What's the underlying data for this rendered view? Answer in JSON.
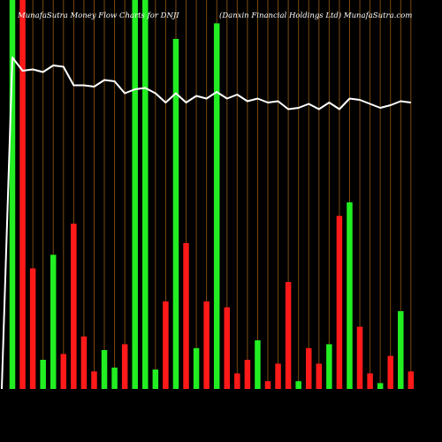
{
  "header": {
    "left_title": "MunafaSutra  Money Flow  Charts for DNJI",
    "right_title": "(Danxin  Financial Holdings Ltd) MunafaSutra.com"
  },
  "colors": {
    "background": "#000000",
    "gridline": "#7a4a10",
    "up_bar": "#22ee22",
    "down_bar": "#ff1a1a",
    "price_line": "#ffffff",
    "title_text": "#ffffff"
  },
  "chart_data": {
    "type": "bar",
    "grid": "vertical",
    "bar_ylim": [
      0,
      100
    ],
    "line_ylim": [
      0,
      100
    ],
    "bars": [
      {
        "direction": "up",
        "value": 100
      },
      {
        "direction": "down",
        "value": 100
      },
      {
        "direction": "down",
        "value": 31
      },
      {
        "direction": "up",
        "value": 7.5
      },
      {
        "direction": "up",
        "value": 34.5
      },
      {
        "direction": "down",
        "value": 9
      },
      {
        "direction": "down",
        "value": 42.5
      },
      {
        "direction": "down",
        "value": 13.5
      },
      {
        "direction": "down",
        "value": 4.5
      },
      {
        "direction": "up",
        "value": 10
      },
      {
        "direction": "up",
        "value": 5.5
      },
      {
        "direction": "down",
        "value": 11.5
      },
      {
        "direction": "up",
        "value": 100
      },
      {
        "direction": "up",
        "value": 100
      },
      {
        "direction": "up",
        "value": 5
      },
      {
        "direction": "down",
        "value": 22.5
      },
      {
        "direction": "up",
        "value": 90
      },
      {
        "direction": "down",
        "value": 37.5
      },
      {
        "direction": "up",
        "value": 10.5
      },
      {
        "direction": "down",
        "value": 22.5
      },
      {
        "direction": "up",
        "value": 94
      },
      {
        "direction": "down",
        "value": 21
      },
      {
        "direction": "down",
        "value": 4
      },
      {
        "direction": "down",
        "value": 7.5
      },
      {
        "direction": "up",
        "value": 12.5
      },
      {
        "direction": "down",
        "value": 2
      },
      {
        "direction": "down",
        "value": 6.5
      },
      {
        "direction": "down",
        "value": 27.5
      },
      {
        "direction": "up",
        "value": 2
      },
      {
        "direction": "down",
        "value": 10.5
      },
      {
        "direction": "down",
        "value": 6.5
      },
      {
        "direction": "up",
        "value": 11.5
      },
      {
        "direction": "down",
        "value": 44.5
      },
      {
        "direction": "up",
        "value": 48
      },
      {
        "direction": "down",
        "value": 16
      },
      {
        "direction": "down",
        "value": 4
      },
      {
        "direction": "up",
        "value": 1.5
      },
      {
        "direction": "down",
        "value": 8.5
      },
      {
        "direction": "up",
        "value": 20
      },
      {
        "direction": "down",
        "value": 4.5
      }
    ],
    "line_values": [
      100,
      90,
      91,
      89,
      94,
      93,
      79,
      79,
      78,
      83,
      82,
      73,
      76,
      77,
      73,
      66,
      73,
      66,
      71,
      69,
      74,
      69,
      72,
      67,
      69,
      66,
      67,
      61,
      62,
      65,
      61,
      66,
      61,
      69,
      68,
      65,
      62,
      64,
      67,
      66
    ]
  }
}
